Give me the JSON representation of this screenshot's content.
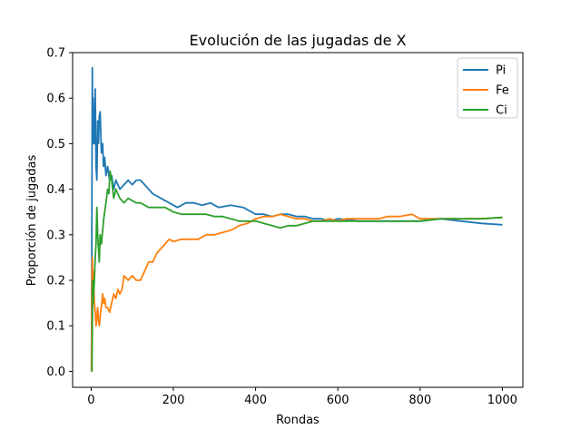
{
  "chart_data": {
    "type": "line",
    "title": "Evolución de las jugadas de X",
    "xlabel": "Rondas",
    "ylabel": "Proporción de jugadas",
    "xlim": [
      -45,
      1050
    ],
    "ylim": [
      -0.035,
      0.7
    ],
    "xticks": [
      0,
      200,
      400,
      600,
      800,
      1000
    ],
    "yticks": [
      0.0,
      0.1,
      0.2,
      0.3,
      0.4,
      0.5,
      0.6,
      0.7
    ],
    "xtick_labels": [
      "0",
      "200",
      "400",
      "600",
      "800",
      "1000"
    ],
    "ytick_labels": [
      "0.0",
      "0.1",
      "0.2",
      "0.3",
      "0.4",
      "0.5",
      "0.6",
      "0.7"
    ],
    "legend_position": "top-right",
    "grid": false,
    "series": [
      {
        "name": "Pi",
        "color": "#1f77b4",
        "points": [
          [
            1,
            0
          ],
          [
            2,
            0.4
          ],
          [
            3,
            0.667
          ],
          [
            4,
            0.5
          ],
          [
            5,
            0.6
          ],
          [
            6,
            0.5
          ],
          [
            7,
            0.57
          ],
          [
            8,
            0.5
          ],
          [
            10,
            0.62
          ],
          [
            12,
            0.45
          ],
          [
            14,
            0.42
          ],
          [
            16,
            0.55
          ],
          [
            18,
            0.5
          ],
          [
            20,
            0.56
          ],
          [
            22,
            0.57
          ],
          [
            25,
            0.48
          ],
          [
            28,
            0.5
          ],
          [
            30,
            0.45
          ],
          [
            33,
            0.47
          ],
          [
            36,
            0.43
          ],
          [
            40,
            0.45
          ],
          [
            45,
            0.42
          ],
          [
            50,
            0.43
          ],
          [
            55,
            0.4
          ],
          [
            60,
            0.42
          ],
          [
            70,
            0.4
          ],
          [
            80,
            0.41
          ],
          [
            90,
            0.42
          ],
          [
            100,
            0.41
          ],
          [
            110,
            0.42
          ],
          [
            120,
            0.42
          ],
          [
            130,
            0.41
          ],
          [
            150,
            0.39
          ],
          [
            170,
            0.38
          ],
          [
            190,
            0.37
          ],
          [
            210,
            0.36
          ],
          [
            230,
            0.37
          ],
          [
            250,
            0.37
          ],
          [
            270,
            0.365
          ],
          [
            290,
            0.37
          ],
          [
            310,
            0.36
          ],
          [
            340,
            0.365
          ],
          [
            370,
            0.36
          ],
          [
            380,
            0.355
          ],
          [
            400,
            0.345
          ],
          [
            420,
            0.345
          ],
          [
            440,
            0.34
          ],
          [
            460,
            0.345
          ],
          [
            480,
            0.345
          ],
          [
            500,
            0.34
          ],
          [
            520,
            0.34
          ],
          [
            540,
            0.335
          ],
          [
            560,
            0.335
          ],
          [
            580,
            0.33
          ],
          [
            600,
            0.335
          ],
          [
            650,
            0.33
          ],
          [
            700,
            0.33
          ],
          [
            750,
            0.33
          ],
          [
            800,
            0.33
          ],
          [
            850,
            0.335
          ],
          [
            900,
            0.33
          ],
          [
            950,
            0.325
          ],
          [
            1000,
            0.322
          ]
        ]
      },
      {
        "name": "Fe",
        "color": "#ff7f0e",
        "points": [
          [
            1,
            0
          ],
          [
            2,
            0.2
          ],
          [
            3,
            0.25
          ],
          [
            4,
            0.2
          ],
          [
            5,
            0.22
          ],
          [
            6,
            0.2
          ],
          [
            8,
            0.15
          ],
          [
            10,
            0.13
          ],
          [
            12,
            0.1
          ],
          [
            14,
            0.12
          ],
          [
            16,
            0.14
          ],
          [
            18,
            0.11
          ],
          [
            20,
            0.1
          ],
          [
            23,
            0.13
          ],
          [
            26,
            0.15
          ],
          [
            28,
            0.17
          ],
          [
            30,
            0.15
          ],
          [
            33,
            0.16
          ],
          [
            36,
            0.14
          ],
          [
            40,
            0.14
          ],
          [
            45,
            0.13
          ],
          [
            50,
            0.15
          ],
          [
            55,
            0.17
          ],
          [
            60,
            0.16
          ],
          [
            65,
            0.18
          ],
          [
            70,
            0.17
          ],
          [
            75,
            0.18
          ],
          [
            80,
            0.21
          ],
          [
            90,
            0.2
          ],
          [
            100,
            0.21
          ],
          [
            110,
            0.2
          ],
          [
            120,
            0.2
          ],
          [
            130,
            0.22
          ],
          [
            140,
            0.24
          ],
          [
            150,
            0.24
          ],
          [
            160,
            0.26
          ],
          [
            170,
            0.27
          ],
          [
            180,
            0.28
          ],
          [
            190,
            0.29
          ],
          [
            200,
            0.285
          ],
          [
            220,
            0.29
          ],
          [
            240,
            0.29
          ],
          [
            260,
            0.29
          ],
          [
            280,
            0.3
          ],
          [
            300,
            0.3
          ],
          [
            320,
            0.305
          ],
          [
            340,
            0.31
          ],
          [
            360,
            0.32
          ],
          [
            380,
            0.325
          ],
          [
            400,
            0.335
          ],
          [
            420,
            0.34
          ],
          [
            440,
            0.34
          ],
          [
            460,
            0.345
          ],
          [
            480,
            0.34
          ],
          [
            500,
            0.335
          ],
          [
            520,
            0.335
          ],
          [
            540,
            0.33
          ],
          [
            560,
            0.33
          ],
          [
            580,
            0.335
          ],
          [
            600,
            0.33
          ],
          [
            620,
            0.335
          ],
          [
            650,
            0.335
          ],
          [
            680,
            0.335
          ],
          [
            700,
            0.335
          ],
          [
            720,
            0.34
          ],
          [
            750,
            0.34
          ],
          [
            780,
            0.345
          ],
          [
            800,
            0.335
          ],
          [
            820,
            0.335
          ],
          [
            850,
            0.335
          ],
          [
            900,
            0.335
          ],
          [
            950,
            0.335
          ],
          [
            1000,
            0.338
          ]
        ]
      },
      {
        "name": "Ci",
        "color": "#2ca02c",
        "points": [
          [
            1,
            0
          ],
          [
            2,
            0
          ],
          [
            3,
            0.1
          ],
          [
            4,
            0.2
          ],
          [
            5,
            0.15
          ],
          [
            6,
            0.17
          ],
          [
            8,
            0.2
          ],
          [
            10,
            0.25
          ],
          [
            12,
            0.28
          ],
          [
            14,
            0.36
          ],
          [
            16,
            0.3
          ],
          [
            18,
            0.27
          ],
          [
            20,
            0.24
          ],
          [
            22,
            0.3
          ],
          [
            25,
            0.28
          ],
          [
            28,
            0.31
          ],
          [
            30,
            0.33
          ],
          [
            33,
            0.35
          ],
          [
            36,
            0.37
          ],
          [
            40,
            0.4
          ],
          [
            43,
            0.39
          ],
          [
            46,
            0.44
          ],
          [
            50,
            0.42
          ],
          [
            55,
            0.38
          ],
          [
            60,
            0.4
          ],
          [
            65,
            0.39
          ],
          [
            70,
            0.38
          ],
          [
            80,
            0.37
          ],
          [
            90,
            0.38
          ],
          [
            100,
            0.375
          ],
          [
            110,
            0.37
          ],
          [
            120,
            0.37
          ],
          [
            140,
            0.36
          ],
          [
            160,
            0.36
          ],
          [
            180,
            0.36
          ],
          [
            200,
            0.35
          ],
          [
            220,
            0.345
          ],
          [
            240,
            0.345
          ],
          [
            260,
            0.345
          ],
          [
            280,
            0.345
          ],
          [
            300,
            0.34
          ],
          [
            320,
            0.34
          ],
          [
            340,
            0.335
          ],
          [
            360,
            0.33
          ],
          [
            380,
            0.33
          ],
          [
            400,
            0.33
          ],
          [
            420,
            0.325
          ],
          [
            440,
            0.32
          ],
          [
            460,
            0.315
          ],
          [
            480,
            0.32
          ],
          [
            500,
            0.32
          ],
          [
            520,
            0.325
          ],
          [
            540,
            0.33
          ],
          [
            560,
            0.33
          ],
          [
            580,
            0.33
          ],
          [
            600,
            0.33
          ],
          [
            650,
            0.33
          ],
          [
            700,
            0.33
          ],
          [
            750,
            0.33
          ],
          [
            800,
            0.33
          ],
          [
            850,
            0.335
          ],
          [
            900,
            0.335
          ],
          [
            950,
            0.335
          ],
          [
            1000,
            0.338
          ]
        ]
      }
    ]
  }
}
